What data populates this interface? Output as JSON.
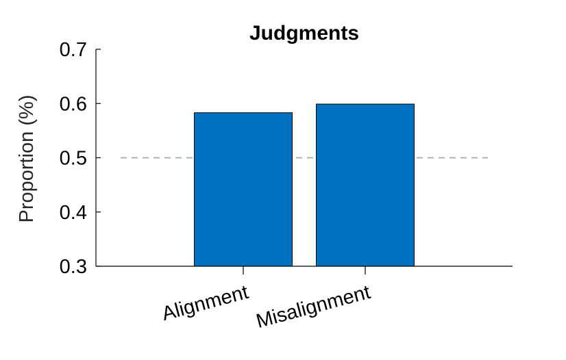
{
  "chart_data": {
    "type": "bar",
    "title": "Judgments",
    "xlabel": "",
    "ylabel": "Proportion (%)",
    "categories": [
      "Alignment",
      "Misalignment"
    ],
    "values": [
      0.583,
      0.599
    ],
    "ylim": [
      0.3,
      0.7
    ],
    "yticks": [
      "0.3",
      "0.4",
      "0.5",
      "0.6",
      "0.7"
    ],
    "reference_line": 0.5,
    "colors": {
      "bar_fill": "#0070c0",
      "bar_edge": "#000000",
      "axis": "#000000",
      "reference_line": "#b3b3b3"
    },
    "grid": false,
    "legend": "none"
  }
}
